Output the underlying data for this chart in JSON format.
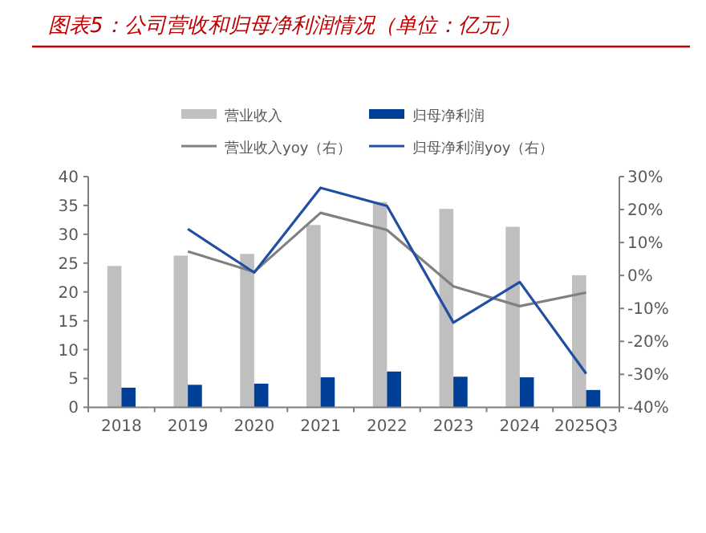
{
  "chart_data": {
    "type": "bar",
    "title": "图表5：公司营收和归母净利润情况（单位：亿元）",
    "categories": [
      "2018",
      "2019",
      "2020",
      "2021",
      "2022",
      "2023",
      "2024",
      "2025Q3"
    ],
    "series": [
      {
        "name": "营业收入",
        "color": "#bfbfbf",
        "values": [
          24.5,
          26.3,
          26.6,
          31.6,
          35.6,
          34.4,
          31.3,
          22.9
        ]
      },
      {
        "name": "归母净利润",
        "color": "#003f98",
        "values": [
          3.4,
          3.9,
          4.1,
          5.2,
          6.2,
          5.3,
          5.2,
          3.0
        ]
      },
      {
        "name": "营业收入yoy（右）",
        "type": "line",
        "axis": "y2",
        "color": "#808080",
        "values": [
          null,
          7.3,
          1.1,
          19.0,
          13.8,
          -3.3,
          -9.3,
          -5.2
        ]
      },
      {
        "name": "归母净利润yoy（右）",
        "type": "line",
        "axis": "y2",
        "color": "#1f4ea3",
        "values": [
          null,
          14.1,
          0.9,
          26.6,
          21.1,
          -14.3,
          -2.0,
          -29.8
        ]
      }
    ],
    "ylim": [
      0,
      40
    ],
    "yticks": [
      0,
      5,
      10,
      15,
      20,
      25,
      30,
      35,
      40
    ],
    "y2lim": [
      -40,
      30
    ],
    "y2ticks": [
      {
        "value": -40,
        "label": "-40%"
      },
      {
        "value": -30,
        "label": "-30%"
      },
      {
        "value": -20,
        "label": "-20%"
      },
      {
        "value": -10,
        "label": "-10%"
      },
      {
        "value": 0,
        "label": "0%"
      },
      {
        "value": 10,
        "label": "10%"
      },
      {
        "value": 20,
        "label": "20%"
      },
      {
        "value": 30,
        "label": "30%"
      }
    ],
    "legend": "top",
    "grid": false
  }
}
